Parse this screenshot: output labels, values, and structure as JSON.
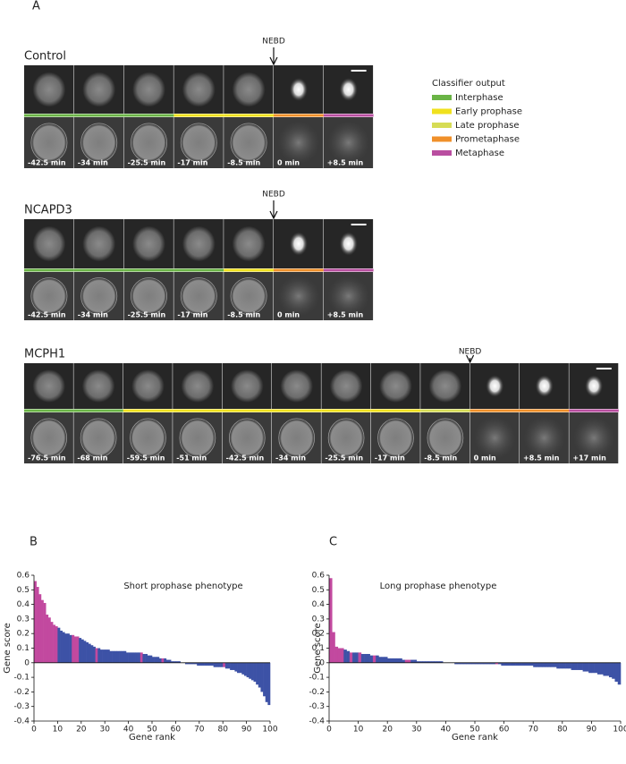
{
  "panel_a": {
    "label": "A",
    "legend": {
      "title": "Classifier output",
      "items": [
        {
          "label": "Interphase",
          "color": "#6ab446"
        },
        {
          "label": "Early prophase",
          "color": "#f0e11e"
        },
        {
          "label": "Late prophase",
          "color": "#d6dc55"
        },
        {
          "label": "Prometaphase",
          "color": "#f0902a"
        },
        {
          "label": "Metaphase",
          "color": "#b94ea0"
        }
      ]
    },
    "rows": [
      {
        "name": "Control",
        "marker": "NEBD",
        "frames": [
          {
            "time": "-42.5 min",
            "color": "#6ab446"
          },
          {
            "time": "-34 min",
            "color": "#6ab446"
          },
          {
            "time": "-25.5 min",
            "color": "#6ab446"
          },
          {
            "time": "-17 min",
            "color": "#f0e11e"
          },
          {
            "time": "-8.5 min",
            "color": "#f0e11e"
          },
          {
            "time": "0 min",
            "color": "#f0902a"
          },
          {
            "time": "+8.5 min",
            "color": "#b94ea0"
          }
        ]
      },
      {
        "name": "NCAPD3",
        "marker": "NEBD",
        "frames": [
          {
            "time": "-42.5 min",
            "color": "#6ab446"
          },
          {
            "time": "-34 min",
            "color": "#6ab446"
          },
          {
            "time": "-25.5 min",
            "color": "#6ab446"
          },
          {
            "time": "-17 min",
            "color": "#6ab446"
          },
          {
            "time": "-8.5 min",
            "color": "#f0e11e"
          },
          {
            "time": "0 min",
            "color": "#f0902a"
          },
          {
            "time": "+8.5 min",
            "color": "#b94ea0"
          }
        ]
      },
      {
        "name": "MCPH1",
        "marker": "NEBD",
        "frames": [
          {
            "time": "-76.5 min",
            "color": "#6ab446"
          },
          {
            "time": "-68 min",
            "color": "#6ab446"
          },
          {
            "time": "-59.5 min",
            "color": "#f0e11e"
          },
          {
            "time": "-51 min",
            "color": "#f0e11e"
          },
          {
            "time": "-42.5 min",
            "color": "#f0e11e"
          },
          {
            "time": "-34 min",
            "color": "#f0e11e"
          },
          {
            "time": "-25.5 min",
            "color": "#f0e11e"
          },
          {
            "time": "-17 min",
            "color": "#f0e11e"
          },
          {
            "time": "-8.5 min",
            "color": "#d6dc55"
          },
          {
            "time": "0 min",
            "color": "#f0902a"
          },
          {
            "time": "+8.5 min",
            "color": "#f0902a"
          },
          {
            "time": "+17 min",
            "color": "#b94ea0"
          }
        ]
      }
    ]
  },
  "chart_data": [
    {
      "type": "bar",
      "label": "B",
      "title": "Short prophase phenotype",
      "xlabel": "Gene rank",
      "ylabel": "Gene score",
      "x": [
        1,
        2,
        3,
        4,
        5,
        6,
        7,
        8,
        9,
        10,
        11,
        12,
        13,
        14,
        15,
        16,
        17,
        18,
        19,
        20,
        21,
        22,
        23,
        24,
        25,
        26,
        27,
        28,
        29,
        30,
        31,
        32,
        33,
        34,
        35,
        36,
        37,
        38,
        39,
        40,
        41,
        42,
        43,
        44,
        45,
        46,
        47,
        48,
        49,
        50,
        51,
        52,
        53,
        54,
        55,
        56,
        57,
        58,
        59,
        60,
        61,
        62,
        63,
        64,
        65,
        66,
        67,
        68,
        69,
        70,
        71,
        72,
        73,
        74,
        75,
        76,
        77,
        78,
        79,
        80,
        81,
        82,
        83,
        84,
        85,
        86,
        87,
        88,
        89,
        90,
        91,
        92,
        93,
        94,
        95,
        96,
        97,
        98,
        99,
        100
      ],
      "values": [
        0.56,
        0.52,
        0.47,
        0.43,
        0.41,
        0.33,
        0.31,
        0.28,
        0.26,
        0.25,
        0.24,
        0.22,
        0.21,
        0.2,
        0.2,
        0.19,
        0.19,
        0.18,
        0.18,
        0.17,
        0.16,
        0.15,
        0.14,
        0.13,
        0.12,
        0.11,
        0.1,
        0.1,
        0.09,
        0.09,
        0.09,
        0.09,
        0.08,
        0.08,
        0.08,
        0.08,
        0.08,
        0.08,
        0.08,
        0.07,
        0.07,
        0.07,
        0.07,
        0.07,
        0.07,
        0.07,
        0.06,
        0.06,
        0.05,
        0.05,
        0.04,
        0.04,
        0.04,
        0.03,
        0.03,
        0.03,
        0.02,
        0.02,
        0.01,
        0.01,
        0.01,
        0.01,
        0,
        0,
        -0.01,
        -0.01,
        -0.01,
        -0.01,
        -0.01,
        -0.02,
        -0.02,
        -0.02,
        -0.02,
        -0.02,
        -0.02,
        -0.02,
        -0.03,
        -0.03,
        -0.03,
        -0.03,
        -0.03,
        -0.04,
        -0.04,
        -0.05,
        -0.05,
        -0.06,
        -0.07,
        -0.07,
        -0.08,
        -0.09,
        -0.1,
        -0.11,
        -0.12,
        -0.13,
        -0.15,
        -0.17,
        -0.2,
        -0.23,
        -0.27,
        -0.29
      ],
      "colors": [
        "#c2499f",
        "#c2499f",
        "#c2499f",
        "#c2499f",
        "#c2499f",
        "#c2499f",
        "#c2499f",
        "#c2499f",
        "#c2499f",
        "#c2499f",
        "#3d52a6",
        "#3d52a6",
        "#3d52a6",
        "#3d52a6",
        "#3d52a6",
        "#3d52a6",
        "#c2499f",
        "#c2499f",
        "#c2499f",
        "#3d52a6",
        "#3d52a6",
        "#3d52a6",
        "#3d52a6",
        "#3d52a6",
        "#3d52a6",
        "#3d52a6",
        "#c2499f",
        "#3d52a6",
        "#3d52a6",
        "#3d52a6",
        "#3d52a6",
        "#3d52a6",
        "#3d52a6",
        "#3d52a6",
        "#3d52a6",
        "#3d52a6",
        "#3d52a6",
        "#3d52a6",
        "#3d52a6",
        "#3d52a6",
        "#3d52a6",
        "#3d52a6",
        "#3d52a6",
        "#3d52a6",
        "#3d52a6",
        "#c2499f",
        "#3d52a6",
        "#3d52a6",
        "#3d52a6",
        "#3d52a6",
        "#3d52a6",
        "#3d52a6",
        "#3d52a6",
        "#3d52a6",
        "#c2499f",
        "#3d52a6",
        "#3d52a6",
        "#3d52a6",
        "#3d52a6",
        "#3d52a6",
        "#3d52a6",
        "#3d52a6",
        "#3d52a6",
        "#3d52a6",
        "#3d52a6",
        "#3d52a6",
        "#3d52a6",
        "#3d52a6",
        "#3d52a6",
        "#3d52a6",
        "#3d52a6",
        "#3d52a6",
        "#3d52a6",
        "#3d52a6",
        "#3d52a6",
        "#3d52a6",
        "#3d52a6",
        "#3d52a6",
        "#3d52a6",
        "#3d52a6",
        "#c2499f",
        "#3d52a6",
        "#3d52a6",
        "#3d52a6",
        "#3d52a6",
        "#3d52a6",
        "#3d52a6",
        "#3d52a6",
        "#3d52a6",
        "#3d52a6",
        "#3d52a6",
        "#3d52a6",
        "#3d52a6",
        "#3d52a6",
        "#3d52a6",
        "#3d52a6",
        "#3d52a6",
        "#3d52a6",
        "#3d52a6",
        "#3d52a6"
      ],
      "xlim": [
        0,
        100
      ],
      "xticks": [
        0,
        10,
        20,
        30,
        40,
        50,
        60,
        70,
        80,
        90,
        100
      ],
      "ylim": [
        -0.4,
        0.6
      ],
      "yticks": [
        -0.4,
        -0.3,
        -0.2,
        -0.1,
        0,
        0.1,
        0.2,
        0.3,
        0.4,
        0.5,
        0.6
      ]
    },
    {
      "type": "bar",
      "label": "C",
      "title": "Long prophase phenotype",
      "xlabel": "Gene rank",
      "ylabel": "Gene score",
      "x": [
        1,
        2,
        3,
        4,
        5,
        6,
        7,
        8,
        9,
        10,
        11,
        12,
        13,
        14,
        15,
        16,
        17,
        18,
        19,
        20,
        21,
        22,
        23,
        24,
        25,
        26,
        27,
        28,
        29,
        30,
        31,
        32,
        33,
        34,
        35,
        36,
        37,
        38,
        39,
        40,
        41,
        42,
        43,
        44,
        45,
        46,
        47,
        48,
        49,
        50,
        51,
        52,
        53,
        54,
        55,
        56,
        57,
        58,
        59,
        60,
        61,
        62,
        63,
        64,
        65,
        66,
        67,
        68,
        69,
        70,
        71,
        72,
        73,
        74,
        75,
        76,
        77,
        78,
        79,
        80,
        81,
        82,
        83,
        84,
        85,
        86,
        87,
        88,
        89,
        90,
        91,
        92,
        93,
        94,
        95,
        96,
        97,
        98,
        99,
        100
      ],
      "values": [
        0.58,
        0.21,
        0.11,
        0.1,
        0.1,
        0.09,
        0.08,
        0.07,
        0.07,
        0.07,
        0.07,
        0.06,
        0.06,
        0.06,
        0.05,
        0.05,
        0.05,
        0.04,
        0.04,
        0.04,
        0.03,
        0.03,
        0.03,
        0.03,
        0.03,
        0.02,
        0.02,
        0.02,
        0.02,
        0.02,
        0.01,
        0.01,
        0.01,
        0.01,
        0.01,
        0.01,
        0.01,
        0.01,
        0.01,
        0,
        0,
        0,
        0,
        -0.01,
        -0.01,
        -0.01,
        -0.01,
        -0.01,
        -0.01,
        -0.01,
        -0.01,
        -0.01,
        -0.01,
        -0.01,
        -0.01,
        -0.01,
        -0.01,
        -0.01,
        -0.01,
        -0.02,
        -0.02,
        -0.02,
        -0.02,
        -0.02,
        -0.02,
        -0.02,
        -0.02,
        -0.02,
        -0.02,
        -0.02,
        -0.03,
        -0.03,
        -0.03,
        -0.03,
        -0.03,
        -0.03,
        -0.03,
        -0.03,
        -0.04,
        -0.04,
        -0.04,
        -0.04,
        -0.04,
        -0.05,
        -0.05,
        -0.05,
        -0.05,
        -0.06,
        -0.06,
        -0.07,
        -0.07,
        -0.07,
        -0.08,
        -0.08,
        -0.09,
        -0.09,
        -0.1,
        -0.11,
        -0.13,
        -0.15
      ],
      "colors": [
        "#c2499f",
        "#c2499f",
        "#c2499f",
        "#c2499f",
        "#c2499f",
        "#3d52a6",
        "#3d52a6",
        "#c2499f",
        "#3d52a6",
        "#3d52a6",
        "#c2499f",
        "#3d52a6",
        "#3d52a6",
        "#3d52a6",
        "#3d52a6",
        "#c2499f",
        "#3d52a6",
        "#3d52a6",
        "#3d52a6",
        "#3d52a6",
        "#3d52a6",
        "#3d52a6",
        "#3d52a6",
        "#3d52a6",
        "#3d52a6",
        "#3d52a6",
        "#c2499f",
        "#c2499f",
        "#3d52a6",
        "#3d52a6",
        "#3d52a6",
        "#3d52a6",
        "#3d52a6",
        "#3d52a6",
        "#3d52a6",
        "#3d52a6",
        "#3d52a6",
        "#3d52a6",
        "#3d52a6",
        "#3d52a6",
        "#3d52a6",
        "#3d52a6",
        "#3d52a6",
        "#3d52a6",
        "#3d52a6",
        "#3d52a6",
        "#3d52a6",
        "#3d52a6",
        "#3d52a6",
        "#3d52a6",
        "#3d52a6",
        "#3d52a6",
        "#3d52a6",
        "#3d52a6",
        "#3d52a6",
        "#3d52a6",
        "#3d52a6",
        "#c2499f",
        "#3d52a6",
        "#3d52a6",
        "#3d52a6",
        "#3d52a6",
        "#3d52a6",
        "#3d52a6",
        "#3d52a6",
        "#3d52a6",
        "#3d52a6",
        "#3d52a6",
        "#3d52a6",
        "#3d52a6",
        "#3d52a6",
        "#3d52a6",
        "#3d52a6",
        "#3d52a6",
        "#3d52a6",
        "#3d52a6",
        "#3d52a6",
        "#3d52a6",
        "#3d52a6",
        "#3d52a6",
        "#3d52a6",
        "#3d52a6",
        "#3d52a6",
        "#3d52a6",
        "#3d52a6",
        "#3d52a6",
        "#3d52a6",
        "#3d52a6",
        "#3d52a6",
        "#3d52a6",
        "#3d52a6",
        "#3d52a6",
        "#3d52a6",
        "#3d52a6",
        "#3d52a6",
        "#3d52a6",
        "#3d52a6",
        "#3d52a6",
        "#3d52a6",
        "#3d52a6"
      ],
      "xlim": [
        0,
        100
      ],
      "xticks": [
        0,
        10,
        20,
        30,
        40,
        50,
        60,
        70,
        80,
        90,
        100
      ],
      "ylim": [
        -0.4,
        0.6
      ],
      "yticks": [
        -0.4,
        -0.3,
        -0.2,
        -0.1,
        0,
        0.1,
        0.2,
        0.3,
        0.4,
        0.5,
        0.6
      ]
    }
  ]
}
